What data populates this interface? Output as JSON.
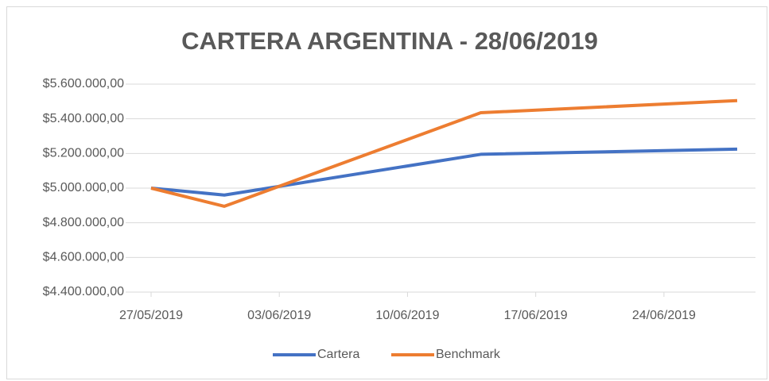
{
  "chart_data": {
    "type": "line",
    "title": "CARTERA ARGENTINA - 28/06/2019",
    "x": [
      "27/05/2019",
      "31/05/2019",
      "14/06/2019",
      "28/06/2019"
    ],
    "series": [
      {
        "name": "Cartera",
        "color": "#4472c4",
        "values": [
          5000000,
          4960000,
          5195000,
          5225000
        ]
      },
      {
        "name": "Benchmark",
        "color": "#ed7d31",
        "values": [
          5000000,
          4895000,
          5435000,
          5505000
        ]
      }
    ],
    "xlim": [
      "27/05/2019",
      "28/06/2019"
    ],
    "xticks": [
      "27/05/2019",
      "03/06/2019",
      "10/06/2019",
      "17/06/2019",
      "24/06/2019"
    ],
    "ylim": [
      4400000,
      5600000
    ],
    "yticks": [
      {
        "value": 4400000,
        "label": "$4.400.000,00"
      },
      {
        "value": 4600000,
        "label": "$4.600.000,00"
      },
      {
        "value": 4800000,
        "label": "$4.800.000,00"
      },
      {
        "value": 5000000,
        "label": "$5.000.000,00"
      },
      {
        "value": 5200000,
        "label": "$5.200.000,00"
      },
      {
        "value": 5400000,
        "label": "$5.400.000,00"
      },
      {
        "value": 5600000,
        "label": "$5.600.000,00"
      }
    ],
    "grid": true,
    "legend": "bottom"
  }
}
